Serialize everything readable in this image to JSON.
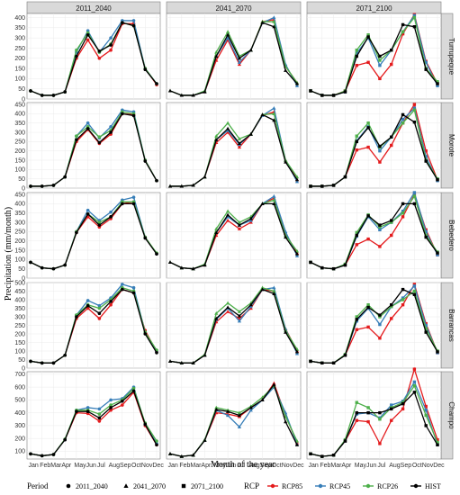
{
  "chart_data": {
    "type": "line",
    "title": "",
    "xlabel": "Month of the year",
    "ylabel": "Precipitation (mm/month)",
    "months": [
      "Jan",
      "Feb",
      "Mar",
      "Apr",
      "May",
      "Jun",
      "Jul",
      "Aug",
      "Sep",
      "Oct",
      "Nov",
      "Dec"
    ],
    "month_tick_labels": [
      "Jan",
      "FebMarApr",
      "MayJun",
      "Jul",
      "AugSep",
      "OctNovDec"
    ],
    "periods": [
      "2011_2040",
      "2041_2070",
      "2071_2100"
    ],
    "legend": {
      "position": "bottom",
      "period_title": "Period",
      "period_items": [
        {
          "label": "2011_2040",
          "marker": "circle"
        },
        {
          "label": "2041_2070",
          "marker": "triangle"
        },
        {
          "label": "2071_2100",
          "marker": "square"
        }
      ],
      "rcp_title": "RCP",
      "rcp_items": [
        {
          "label": "RCP85",
          "color": "#e41a1c"
        },
        {
          "label": "RCP45",
          "color": "#377eb8"
        },
        {
          "label": "RCP26",
          "color": "#4daf4a"
        },
        {
          "label": "HIST",
          "color": "#000000"
        }
      ]
    },
    "stations": [
      {
        "name": "Turrupeque",
        "ylim": [
          0,
          420
        ],
        "yticks": [
          0,
          50,
          100,
          150,
          200,
          250,
          300,
          350,
          400
        ],
        "panels": [
          {
            "RCP85": [
              40,
              18,
              18,
              35,
              200,
              290,
              200,
              240,
              370,
              370,
              150,
              70
            ],
            "RCP45": [
              40,
              18,
              18,
              35,
              230,
              335,
              230,
              300,
              385,
              385,
              150,
              75
            ],
            "RCP26": [
              40,
              18,
              18,
              35,
              240,
              325,
              230,
              270,
              375,
              360,
              150,
              75
            ],
            "HIST": [
              40,
              18,
              18,
              35,
              210,
              315,
              235,
              265,
              375,
              360,
              145,
              75
            ]
          },
          {
            "RCP85": [
              40,
              18,
              18,
              35,
              190,
              290,
              170,
              240,
              380,
              390,
              160,
              80
            ],
            "RCP45": [
              40,
              18,
              18,
              35,
              210,
              300,
              180,
              240,
              375,
              400,
              170,
              65
            ],
            "RCP26": [
              40,
              18,
              18,
              40,
              230,
              330,
              210,
              240,
              380,
              380,
              160,
              80
            ],
            "HIST": [
              40,
              18,
              18,
              35,
              210,
              315,
              200,
              240,
              375,
              355,
              140,
              75
            ]
          },
          {
            "RCP85": [
              40,
              18,
              18,
              40,
              165,
              180,
              100,
              170,
              320,
              415,
              185,
              75
            ],
            "RCP45": [
              40,
              18,
              18,
              35,
              225,
              300,
              165,
              240,
              330,
              410,
              180,
              65
            ],
            "RCP26": [
              40,
              18,
              18,
              40,
              240,
              315,
              190,
              240,
              330,
              400,
              150,
              85
            ],
            "HIST": [
              40,
              18,
              18,
              35,
              210,
              305,
              210,
              240,
              365,
              355,
              145,
              75
            ]
          }
        ]
      },
      {
        "name": "Morote",
        "ylim": [
          0,
          460
        ],
        "yticks": [
          0,
          50,
          100,
          150,
          200,
          250,
          300,
          350,
          400,
          450
        ],
        "panels": [
          {
            "RCP85": [
              10,
              10,
              15,
              60,
              250,
              315,
              240,
              290,
              400,
              395,
              150,
              40
            ],
            "RCP45": [
              10,
              10,
              15,
              60,
              280,
              350,
              270,
              330,
              420,
              410,
              150,
              40
            ],
            "RCP26": [
              10,
              10,
              15,
              60,
              280,
              330,
              275,
              310,
              410,
              400,
              150,
              40
            ],
            "HIST": [
              10,
              10,
              15,
              60,
              260,
              320,
              245,
              300,
              400,
              390,
              145,
              40
            ]
          },
          {
            "RCP85": [
              10,
              10,
              15,
              60,
              245,
              300,
              220,
              290,
              390,
              410,
              150,
              45
            ],
            "RCP45": [
              10,
              10,
              15,
              60,
              260,
              310,
              235,
              290,
              390,
              430,
              150,
              35
            ],
            "RCP26": [
              10,
              10,
              15,
              60,
              280,
              350,
              265,
              290,
              395,
              400,
              150,
              60
            ],
            "HIST": [
              10,
              10,
              15,
              60,
              260,
              320,
              240,
              290,
              395,
              365,
              140,
              45
            ]
          },
          {
            "RCP85": [
              10,
              10,
              15,
              60,
              205,
              220,
              140,
              230,
              350,
              450,
              200,
              45
            ],
            "RCP45": [
              10,
              10,
              15,
              60,
              255,
              330,
              200,
              275,
              370,
              430,
              170,
              40
            ],
            "RCP26": [
              10,
              10,
              15,
              60,
              280,
              350,
              220,
              275,
              350,
              420,
              150,
              50
            ],
            "HIST": [
              10,
              10,
              15,
              60,
              250,
              325,
              225,
              275,
              395,
              355,
              145,
              45
            ]
          }
        ]
      },
      {
        "name": "Bebedero",
        "ylim": [
          0,
          460
        ],
        "yticks": [
          0,
          50,
          100,
          150,
          200,
          250,
          300,
          350,
          400,
          450
        ],
        "panels": [
          {
            "RCP85": [
              85,
              55,
              50,
              70,
              245,
              330,
              275,
              320,
              400,
              410,
              220,
              130
            ],
            "RCP45": [
              85,
              55,
              50,
              70,
              250,
              365,
              310,
              355,
              420,
              435,
              220,
              130
            ],
            "RCP26": [
              85,
              55,
              50,
              70,
              250,
              345,
              300,
              330,
              410,
              410,
              220,
              135
            ],
            "HIST": [
              85,
              55,
              50,
              70,
              245,
              345,
              285,
              330,
              400,
              400,
              215,
              130
            ]
          },
          {
            "RCP85": [
              85,
              55,
              50,
              70,
              230,
              310,
              265,
              300,
              400,
              430,
              240,
              135
            ],
            "RCP45": [
              85,
              55,
              50,
              70,
              245,
              330,
              285,
              310,
              400,
              440,
              250,
              120
            ],
            "RCP26": [
              85,
              55,
              50,
              75,
              265,
              360,
              300,
              330,
              400,
              420,
              230,
              145
            ],
            "HIST": [
              85,
              55,
              50,
              70,
              245,
              340,
              285,
              320,
              400,
              400,
              220,
              130
            ]
          },
          {
            "RCP85": [
              85,
              55,
              50,
              70,
              180,
              210,
              170,
              230,
              330,
              450,
              260,
              125
            ],
            "RCP45": [
              85,
              55,
              50,
              70,
              225,
              330,
              260,
              300,
              360,
              460,
              250,
              125
            ],
            "RCP26": [
              85,
              55,
              50,
              75,
              245,
              340,
              275,
              300,
              350,
              440,
              230,
              140
            ],
            "HIST": [
              85,
              55,
              50,
              70,
              230,
              335,
              285,
              310,
              400,
              400,
              220,
              135
            ]
          }
        ]
      },
      {
        "name": "Barrancas",
        "ylim": [
          0,
          500
        ],
        "yticks": [
          0,
          50,
          100,
          150,
          200,
          250,
          300,
          350,
          400,
          450,
          500
        ],
        "panels": [
          {
            "RCP85": [
              40,
              30,
              30,
              75,
              290,
              350,
              290,
              370,
              460,
              440,
              220,
              95
            ],
            "RCP45": [
              40,
              30,
              30,
              75,
              310,
              395,
              365,
              410,
              490,
              470,
              210,
              95
            ],
            "RCP26": [
              40,
              30,
              30,
              75,
              310,
              370,
              350,
              400,
              470,
              450,
              210,
              105
            ],
            "HIST": [
              40,
              30,
              30,
              75,
              300,
              365,
              320,
              390,
              460,
              440,
              200,
              90
            ]
          },
          {
            "RCP85": [
              40,
              30,
              30,
              75,
              270,
              330,
              290,
              350,
              460,
              450,
              230,
              100
            ],
            "RCP45": [
              40,
              30,
              30,
              75,
              285,
              350,
              275,
              360,
              460,
              470,
              230,
              85
            ],
            "RCP26": [
              40,
              30,
              30,
              80,
              320,
              380,
              330,
              380,
              470,
              450,
              220,
              110
            ],
            "HIST": [
              40,
              30,
              30,
              75,
              290,
              355,
              305,
              370,
              460,
              435,
              210,
              95
            ]
          },
          {
            "RCP85": [
              40,
              30,
              30,
              75,
              225,
              240,
              175,
              290,
              370,
              490,
              260,
              90
            ],
            "RCP45": [
              40,
              30,
              30,
              75,
              275,
              350,
              255,
              360,
              410,
              480,
              250,
              90
            ],
            "RCP26": [
              40,
              30,
              30,
              80,
              300,
              370,
              300,
              360,
              400,
              450,
              230,
              100
            ],
            "HIST": [
              40,
              30,
              30,
              75,
              285,
              355,
              310,
              370,
              460,
              430,
              210,
              95
            ]
          }
        ]
      },
      {
        "name": "Champo",
        "ylim": [
          40,
          720
        ],
        "yticks": [
          100,
          200,
          300,
          400,
          500,
          600,
          700
        ],
        "panels": [
          {
            "RCP85": [
              80,
              65,
              75,
              190,
              400,
              395,
              335,
              420,
              460,
              560,
              300,
              150
            ],
            "RCP45": [
              80,
              65,
              75,
              190,
              420,
              440,
              430,
              500,
              510,
              600,
              310,
              160
            ],
            "RCP26": [
              80,
              65,
              75,
              195,
              420,
              420,
              390,
              460,
              500,
              590,
              320,
              180
            ],
            "HIST": [
              80,
              65,
              75,
              190,
              410,
              410,
              360,
              440,
              490,
              570,
              310,
              150
            ]
          },
          {
            "RCP85": [
              80,
              60,
              70,
              185,
              400,
              390,
              370,
              440,
              500,
              630,
              380,
              165
            ],
            "RCP45": [
              80,
              60,
              70,
              185,
              420,
              380,
              290,
              420,
              500,
              600,
              400,
              155
            ],
            "RCP26": [
              80,
              60,
              70,
              190,
              440,
              420,
              400,
              450,
              520,
              610,
              370,
              180
            ],
            "HIST": [
              80,
              60,
              70,
              185,
              425,
              410,
              380,
              440,
              500,
              620,
              330,
              150
            ]
          },
          {
            "RCP85": [
              80,
              60,
              70,
              180,
              340,
              330,
              160,
              340,
              430,
              740,
              450,
              190
            ],
            "RCP45": [
              80,
              60,
              70,
              180,
              390,
              400,
              360,
              460,
              490,
              640,
              420,
              150
            ],
            "RCP26": [
              80,
              60,
              70,
              190,
              480,
              440,
              350,
              440,
              480,
              610,
              380,
              170
            ],
            "HIST": [
              80,
              60,
              70,
              180,
              400,
              400,
              400,
              430,
              470,
              560,
              300,
              150
            ]
          }
        ]
      }
    ]
  }
}
